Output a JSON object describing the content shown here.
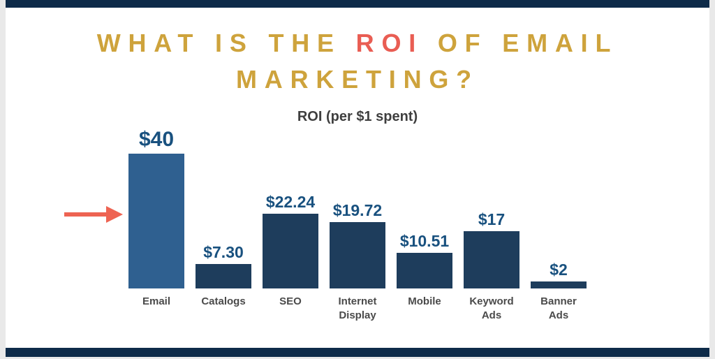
{
  "title": {
    "prefix": "WHAT IS THE ",
    "highlight": "ROI",
    "suffix": " OF EMAIL MARKETING?"
  },
  "colors": {
    "title_gold": "#CEA33C",
    "title_highlight_red": "#E95D53",
    "bar_navy": "#1E3D5C",
    "bar_highlight_blue": "#2F6090",
    "value_label_blue": "#19517F",
    "category_label_gray": "#4A4A4A",
    "frame_navy": "#0E2B49",
    "arrow_coral": "#EE6352",
    "card_white": "#FFFFFF",
    "page_gray": "#E9E9E9"
  },
  "chart_data": {
    "type": "bar",
    "title": "ROI (per $1 spent)",
    "categories": [
      "Email",
      "Catalogs",
      "SEO",
      "Internet Display",
      "Mobile",
      "Keyword Ads",
      "Banner Ads"
    ],
    "values": [
      40,
      7.3,
      22.24,
      19.72,
      10.51,
      17,
      2
    ],
    "value_labels": [
      "$40",
      "$7.30",
      "$22.24",
      "$19.72",
      "$10.51",
      "$17",
      "$2"
    ],
    "highlight_index": 0,
    "ylim": [
      0,
      40
    ],
    "grid": false,
    "legend": false,
    "annotation": "red arrow pointing at the Email bar"
  }
}
